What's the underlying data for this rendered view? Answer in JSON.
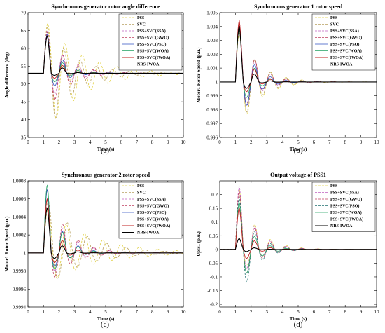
{
  "chart_data": [
    {
      "type": "line",
      "panel_label": "(a)",
      "title": "Synchronous generator rotor angle difference",
      "xlabel": "Time (s)",
      "ylabel": "Angle difference (deg)",
      "xlim": [
        0,
        10
      ],
      "ylim": [
        35,
        70
      ],
      "xticks": [
        0,
        1,
        2,
        3,
        4,
        5,
        6,
        7,
        8,
        9,
        10
      ],
      "yticks": [
        35,
        40,
        45,
        50,
        55,
        60,
        65,
        70
      ],
      "legend_position": "top-right",
      "baseline": 53,
      "t_fault": 1.0,
      "series": [
        {
          "name": "PSS",
          "color": "#e0d040",
          "dash": "3,2",
          "width": 0.8,
          "peak": 67,
          "trough": 36.5,
          "decay": 0.45,
          "freq": 0.9
        },
        {
          "name": "SVC",
          "color": "#b8a060",
          "dash": "3,2",
          "width": 0.8,
          "peak": 66,
          "trough": 35.5,
          "decay": 0.6,
          "freq": 0.95
        },
        {
          "name": "PSS+SVC(SSA)",
          "color": "#c060c0",
          "dash": "3,2",
          "width": 0.8,
          "peak": 65,
          "trough": 44,
          "decay": 0.9,
          "freq": 1.0
        },
        {
          "name": "PSS+SVC(GWO)",
          "color": "#c04060",
          "dash": "3,2",
          "width": 0.8,
          "peak": 64.5,
          "trough": 42,
          "decay": 0.8,
          "freq": 1.0
        },
        {
          "name": "PSS+SVC(PSO)",
          "color": "#3050c0",
          "dash": "",
          "width": 0.8,
          "peak": 64,
          "trough": 47,
          "decay": 1.1,
          "freq": 1.0
        },
        {
          "name": "PSS+SVC(WOA)",
          "color": "#20a060",
          "dash": "",
          "width": 0.8,
          "peak": 63.5,
          "trough": 48.5,
          "decay": 1.3,
          "freq": 1.0
        },
        {
          "name": "PSS+SVC(IWOA)",
          "color": "#c02020",
          "dash": "",
          "width": 0.9,
          "peak": 63.5,
          "trough": 50,
          "decay": 1.6,
          "freq": 1.0
        },
        {
          "name": "NRS-IWOA",
          "color": "#000000",
          "dash": "",
          "width": 1.1,
          "peak": 63.5,
          "trough": 51.5,
          "decay": 2.0,
          "freq": 1.0
        }
      ]
    },
    {
      "type": "line",
      "panel_label": "(b)",
      "title": "Synchronous generator 1 rotor speed",
      "xlabel": "Time (s)",
      "ylabel": "Motor1 Rotor Speed (p.u.)",
      "xlim": [
        0,
        10
      ],
      "ylim": [
        0.996,
        1.005
      ],
      "xticks": [
        0,
        1,
        2,
        3,
        4,
        5,
        6,
        7,
        8,
        9,
        10
      ],
      "yticks": [
        0.996,
        0.997,
        0.998,
        0.999,
        1,
        1.001,
        1.002,
        1.003,
        1.004,
        1.005
      ],
      "ytick_labels": [
        "0.996",
        "0.997",
        "0.998",
        "0.999",
        "1",
        "1.001",
        "1.002",
        "1.003",
        "1.004",
        "1.005"
      ],
      "legend_position": "top-right",
      "baseline": 1,
      "t_fault": 1.0,
      "series": [
        {
          "name": "PSS",
          "color": "#e0d040",
          "dash": "3,2",
          "width": 0.8,
          "peak": 1.0035,
          "trough": 0.9965,
          "decay": 0.8,
          "freq": 1.0
        },
        {
          "name": "SVC",
          "color": "#b8a060",
          "dash": "3,2",
          "width": 0.8,
          "peak": 1.0038,
          "trough": 0.9967,
          "decay": 0.85,
          "freq": 1.0
        },
        {
          "name": "PSS+SVC(SSA)",
          "color": "#c060c0",
          "dash": "3,2",
          "width": 0.8,
          "peak": 1.0042,
          "trough": 0.9972,
          "decay": 1.0,
          "freq": 1.0
        },
        {
          "name": "PSS+SVC(GWO)",
          "color": "#c04060",
          "dash": "3,2",
          "width": 0.8,
          "peak": 1.0043,
          "trough": 0.9975,
          "decay": 1.0,
          "freq": 1.0
        },
        {
          "name": "PSS+SVC(PSO)",
          "color": "#3050c0",
          "dash": "",
          "width": 0.8,
          "peak": 1.004,
          "trough": 0.997,
          "decay": 1.2,
          "freq": 1.0
        },
        {
          "name": "PSS+SVC(WOA)",
          "color": "#20a060",
          "dash": "",
          "width": 0.8,
          "peak": 1.0039,
          "trough": 0.9978,
          "decay": 1.4,
          "freq": 1.0
        },
        {
          "name": "PSS+SVC(IWOA)",
          "color": "#c02020",
          "dash": "",
          "width": 0.9,
          "peak": 1.0044,
          "trough": 0.9985,
          "decay": 1.6,
          "freq": 1.0
        },
        {
          "name": "NRS-IWOA",
          "color": "#000000",
          "dash": "",
          "width": 1.1,
          "peak": 1.004,
          "trough": 0.9988,
          "decay": 2.0,
          "freq": 1.0
        }
      ]
    },
    {
      "type": "line",
      "panel_label": "(c)",
      "title": "Synchronous generator 2 rotor speed",
      "xlabel": "Time (s)",
      "ylabel": "Motor1 Rotor Speed (p.u.)",
      "xlim": [
        0,
        10
      ],
      "ylim": [
        0.9994,
        1.0008
      ],
      "xticks": [
        0,
        1,
        2,
        3,
        4,
        5,
        6,
        7,
        8,
        9,
        10
      ],
      "yticks": [
        0.9994,
        0.9996,
        0.9998,
        1,
        1.0002,
        1.0004,
        1.0006,
        1.0008
      ],
      "ytick_labels": [
        "0.9994",
        "0.9996",
        "0.9998",
        "1",
        "1.0002",
        "1.0004",
        "1.0006",
        "1.0008"
      ],
      "legend_position": "top-right",
      "baseline": 1,
      "t_fault": 1.0,
      "series": [
        {
          "name": "PSS",
          "color": "#e0d040",
          "dash": "3,2",
          "width": 0.8,
          "peak": 1.0005,
          "trough": 0.99965,
          "decay": 0.35,
          "freq": 0.85
        },
        {
          "name": "SVC",
          "color": "#b8a060",
          "dash": "3,2",
          "width": 0.8,
          "peak": 1.0006,
          "trough": 0.99962,
          "decay": 0.45,
          "freq": 0.8
        },
        {
          "name": "PSS+SVC(SSA)",
          "color": "#c060c0",
          "dash": "3,2",
          "width": 0.8,
          "peak": 1.0006,
          "trough": 0.9997,
          "decay": 0.8,
          "freq": 1.0
        },
        {
          "name": "PSS+SVC(GWO)",
          "color": "#c04060",
          "dash": "3,2",
          "width": 0.8,
          "peak": 1.0007,
          "trough": 0.9996,
          "decay": 0.8,
          "freq": 1.0
        },
        {
          "name": "PSS+SVC(PSO)",
          "color": "#3050c0",
          "dash": "",
          "width": 0.8,
          "peak": 1.0007,
          "trough": 0.99975,
          "decay": 1.1,
          "freq": 1.0
        },
        {
          "name": "PSS+SVC(WOA)",
          "color": "#20a060",
          "dash": "",
          "width": 0.8,
          "peak": 1.00075,
          "trough": 0.99968,
          "decay": 1.2,
          "freq": 1.0
        },
        {
          "name": "PSS+SVC(IWOA)",
          "color": "#c02020",
          "dash": "",
          "width": 0.9,
          "peak": 1.0006,
          "trough": 0.99978,
          "decay": 1.5,
          "freq": 1.0
        },
        {
          "name": "NRS-IWOA",
          "color": "#000000",
          "dash": "",
          "width": 1.1,
          "peak": 1.0005,
          "trough": 0.99985,
          "decay": 1.9,
          "freq": 1.0
        }
      ]
    },
    {
      "type": "line",
      "panel_label": "(d)",
      "title": "Output voltage of PSS1",
      "xlabel": "Time (s)",
      "ylabel": "Upss1 (p.u.)",
      "xlim": [
        0,
        10
      ],
      "ylim": [
        -0.21,
        0.25
      ],
      "xticks": [
        0,
        1,
        2,
        3,
        4,
        5,
        6,
        7,
        8,
        9,
        10
      ],
      "yticks": [
        -0.2,
        -0.15,
        -0.1,
        -0.05,
        0,
        0.05,
        0.1,
        0.15,
        0.2
      ],
      "ytick_labels": [
        "-0.2",
        "-0.15",
        "-0.1",
        "-0.05",
        "0",
        "0.05",
        "0.1",
        "0.15",
        "0.2"
      ],
      "legend_position": "top-right",
      "baseline": 0,
      "t_fault": 1.0,
      "series": [
        {
          "name": "PSS",
          "color": "#e0d040",
          "dash": "3,2",
          "width": 0.8,
          "peak": 0.22,
          "trough": -0.09,
          "decay": 0.9,
          "freq": 1.0
        },
        {
          "name": "PSS+SVC(SSA)",
          "color": "#c060c0",
          "dash": "3,2",
          "width": 0.8,
          "peak": 0.23,
          "trough": -0.11,
          "decay": 1.0,
          "freq": 1.0
        },
        {
          "name": "PSS+SVC(GWO)",
          "color": "#c04060",
          "dash": "3,2",
          "width": 0.8,
          "peak": 0.21,
          "trough": -0.14,
          "decay": 1.0,
          "freq": 1.0
        },
        {
          "name": "PSS+SVC(PSO)",
          "color": "#207070",
          "dash": "3,2",
          "width": 0.8,
          "peak": 0.19,
          "trough": -0.2,
          "decay": 1.1,
          "freq": 1.0
        },
        {
          "name": "PSS+SVC(WOA)",
          "color": "#20a060",
          "dash": "",
          "width": 0.8,
          "peak": 0.17,
          "trough": -0.16,
          "decay": 1.3,
          "freq": 1.0
        },
        {
          "name": "PSS+SVC(IWOA)",
          "color": "#c02020",
          "dash": "",
          "width": 0.9,
          "peak": 0.15,
          "trough": -0.07,
          "decay": 1.6,
          "freq": 1.0
        },
        {
          "name": "NRS-IWOA",
          "color": "#000000",
          "dash": "",
          "width": 1.1,
          "peak": 0.04,
          "trough": -0.02,
          "decay": 2.0,
          "freq": 1.0
        }
      ]
    }
  ]
}
